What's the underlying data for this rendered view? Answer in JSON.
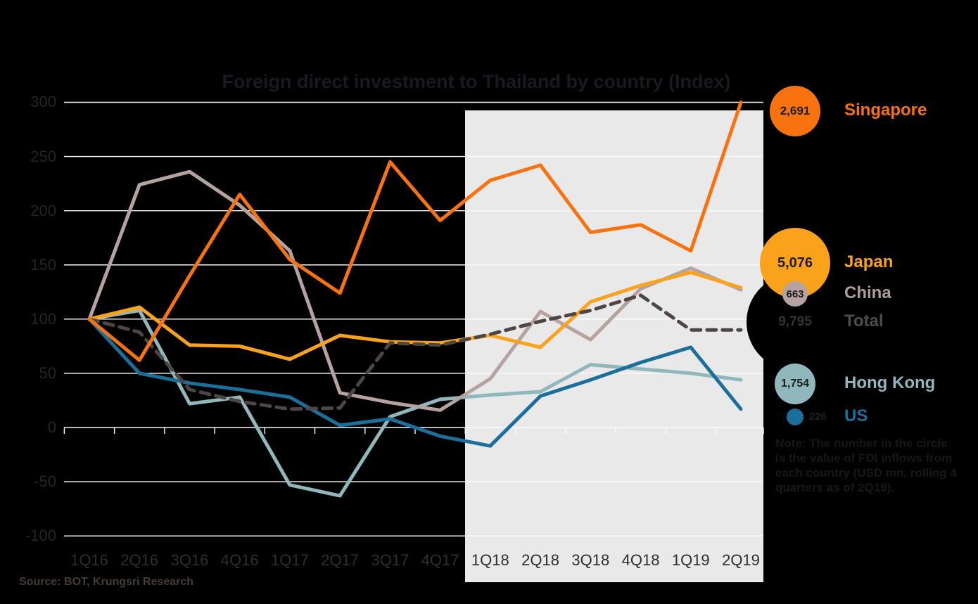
{
  "title": "Foreign direct investment to Thailand by country (Index)",
  "source": "Source: BOT, Krungsri Research",
  "note": "Note: The number in the circle\nis the value of FDI inflows from\neach country (USD mn, rolling 4\nquarters as of 2Q19).",
  "chart_data": {
    "type": "line",
    "categories": [
      "1Q16",
      "2Q16",
      "3Q16",
      "4Q16",
      "1Q17",
      "2Q17",
      "3Q17",
      "4Q17",
      "1Q18",
      "2Q18",
      "3Q18",
      "4Q18",
      "1Q19",
      "2Q19"
    ],
    "series": [
      {
        "name": "Singapore",
        "color": "#F8730F",
        "dash": false,
        "values": [
          100,
          62,
          140,
          215,
          155,
          124,
          245,
          191,
          228,
          242,
          180,
          187,
          163,
          300
        ]
      },
      {
        "name": "Japan",
        "color": "#FAA21C",
        "dash": false,
        "values": [
          100,
          111,
          76,
          75,
          63,
          85,
          79,
          78,
          85,
          74,
          116,
          131,
          143,
          129
        ]
      },
      {
        "name": "China",
        "color": "#B5A2A1",
        "dash": false,
        "values": [
          100,
          224,
          236,
          205,
          163,
          32,
          23,
          16,
          45,
          107,
          81,
          128,
          147,
          127
        ]
      },
      {
        "name": "Total",
        "color": "#4D4645",
        "dash": true,
        "values": [
          100,
          88,
          35,
          24,
          17,
          18,
          78,
          76,
          86,
          98,
          108,
          122,
          90,
          90
        ]
      },
      {
        "name": "Hong Kong",
        "color": "#90B7BC",
        "dash": false,
        "values": [
          100,
          108,
          22,
          28,
          -53,
          -63,
          10,
          26,
          30,
          33,
          58,
          54,
          50,
          44
        ]
      },
      {
        "name": "US",
        "color": "#1A6F9B",
        "dash": false,
        "values": [
          100,
          50,
          41,
          35,
          28,
          2,
          8,
          -8,
          -17,
          29,
          44,
          60,
          74,
          17
        ]
      }
    ],
    "title": "Foreign direct investment to Thailand by country (Index)",
    "xlabel": "",
    "ylabel": "",
    "ylim": [
      -100,
      300
    ],
    "yticks": [
      300,
      250,
      200,
      150,
      100,
      50,
      0,
      -50,
      -100
    ],
    "grid": true,
    "gridline_color": "#FBFBFB",
    "background_color": "#000000",
    "highlight_region": {
      "start_category": "1Q18",
      "end_category": "2Q19",
      "color": "#E9E9E9"
    },
    "legend_position": "right"
  },
  "legend": {
    "items": [
      {
        "label": "Singapore",
        "value": "2,691",
        "circle_color": "#F8730F",
        "label_color": "#F8730F",
        "value_color": "#1c1c1c"
      },
      {
        "label": "Japan",
        "value": "5,076",
        "circle_color": "#FAA21C",
        "label_color": "#FAA21C",
        "value_color": "#1c1c1c"
      },
      {
        "label": "China",
        "value": "663",
        "circle_color": "#B5A2A1",
        "label_color": "#AE9B9A",
        "value_color": "#1c1c1c"
      },
      {
        "label": "Total",
        "value": "9,795",
        "circle_color": "#000000",
        "label_color": "#514B49",
        "value_color": "#353130"
      },
      {
        "label": "Hong Kong",
        "value": "1,754",
        "circle_color": "#90B7BC",
        "label_color": "#90B7BC",
        "value_color": "#1c1c1c"
      },
      {
        "label": "US",
        "value": "226",
        "circle_color": "#1A6F9B",
        "label_color": "#1A6F9B",
        "value_color": "#1f1f1f",
        "value_outside": true
      }
    ]
  }
}
